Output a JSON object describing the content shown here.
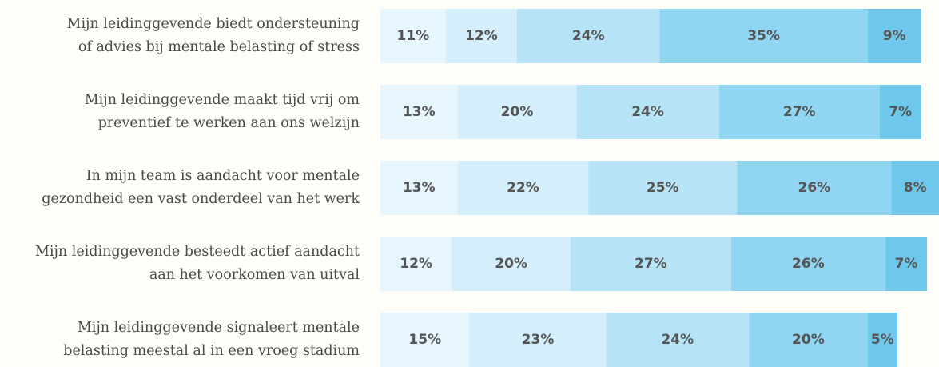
{
  "chart_data": {
    "type": "stacked-bar-horizontal",
    "categories": [
      [
        "Mijn leidinggevende biedt ondersteuning",
        "of advies bij mentale belasting of stress"
      ],
      [
        "Mijn leidinggevende maakt tijd vrij om",
        "preventief te werken aan ons welzijn"
      ],
      [
        "In mijn team is aandacht voor mentale",
        "gezondheid een vast onderdeel van het werk"
      ],
      [
        "Mijn leidinggevende besteedt actief aandacht",
        "aan het voorkomen van uitval"
      ],
      [
        "Mijn leidinggevende signaleert mentale",
        "belasting meestal al in een vroeg stadium"
      ]
    ],
    "series": [
      {
        "color": "#e7f5fd",
        "values": [
          11,
          13,
          13,
          12,
          15
        ],
        "value_labels": [
          "11%",
          "13%",
          "13%",
          "12%",
          "15%"
        ]
      },
      {
        "color": "#d4effb",
        "values": [
          12,
          20,
          22,
          20,
          23
        ],
        "value_labels": [
          "12%",
          "20%",
          "22%",
          "20%",
          "23%"
        ]
      },
      {
        "color": "#b6e4f6",
        "values": [
          24,
          24,
          25,
          27,
          24
        ],
        "value_labels": [
          "24%",
          "24%",
          "25%",
          "27%",
          "24%"
        ]
      },
      {
        "color": "#90d6f2",
        "values": [
          35,
          27,
          26,
          26,
          20
        ],
        "value_labels": [
          "35%",
          "27%",
          "26%",
          "26%",
          "20%"
        ]
      },
      {
        "color": "#6dc8ec",
        "values": [
          9,
          7,
          8,
          7,
          5
        ],
        "value_labels": [
          "9%",
          "7%",
          "8%",
          "7%",
          "5%"
        ]
      }
    ],
    "xlim": [
      0,
      94
    ]
  }
}
